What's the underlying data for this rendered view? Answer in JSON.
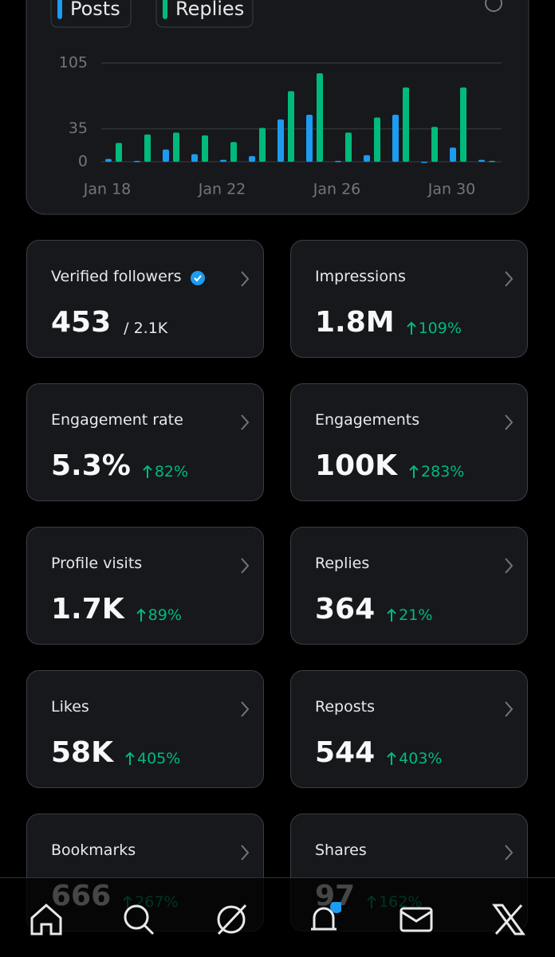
{
  "chart_data": {
    "type": "bar",
    "series": [
      {
        "name": "Posts",
        "color": "#1d9bf0",
        "values": [
          3,
          1,
          13,
          8,
          2,
          6,
          45,
          50,
          1,
          7,
          50,
          0,
          15,
          2
        ]
      },
      {
        "name": "Replies",
        "color": "#00ba7c",
        "values": [
          20,
          29,
          31,
          28,
          21,
          36,
          75,
          94,
          31,
          47,
          79,
          37,
          79,
          1
        ]
      }
    ],
    "categories": [
      "Jan 18",
      null,
      null,
      null,
      "Jan 22",
      null,
      null,
      null,
      "Jan 26",
      null,
      null,
      null,
      "Jan 30",
      null
    ],
    "ylim": [
      0,
      105
    ],
    "yticks": [
      0,
      35,
      105
    ],
    "grid": true
  },
  "cards": [
    {
      "label": "Verified followers",
      "value": "453",
      "total": "/ 2.1K",
      "verified": true
    },
    {
      "label": "Impressions",
      "value": "1.8M",
      "change": "109%"
    },
    {
      "label": "Engagement rate",
      "value": "5.3%",
      "change": "82%"
    },
    {
      "label": "Engagements",
      "value": "100K",
      "change": "283%"
    },
    {
      "label": "Profile visits",
      "value": "1.7K",
      "change": "89%"
    },
    {
      "label": "Replies",
      "value": "364",
      "change": "21%"
    },
    {
      "label": "Likes",
      "value": "58K",
      "change": "405%"
    },
    {
      "label": "Reposts",
      "value": "544",
      "change": "403%"
    },
    {
      "label": "Bookmarks",
      "value": "666",
      "change": "267%"
    },
    {
      "label": "Shares",
      "value": "97",
      "change": "162%"
    }
  ]
}
